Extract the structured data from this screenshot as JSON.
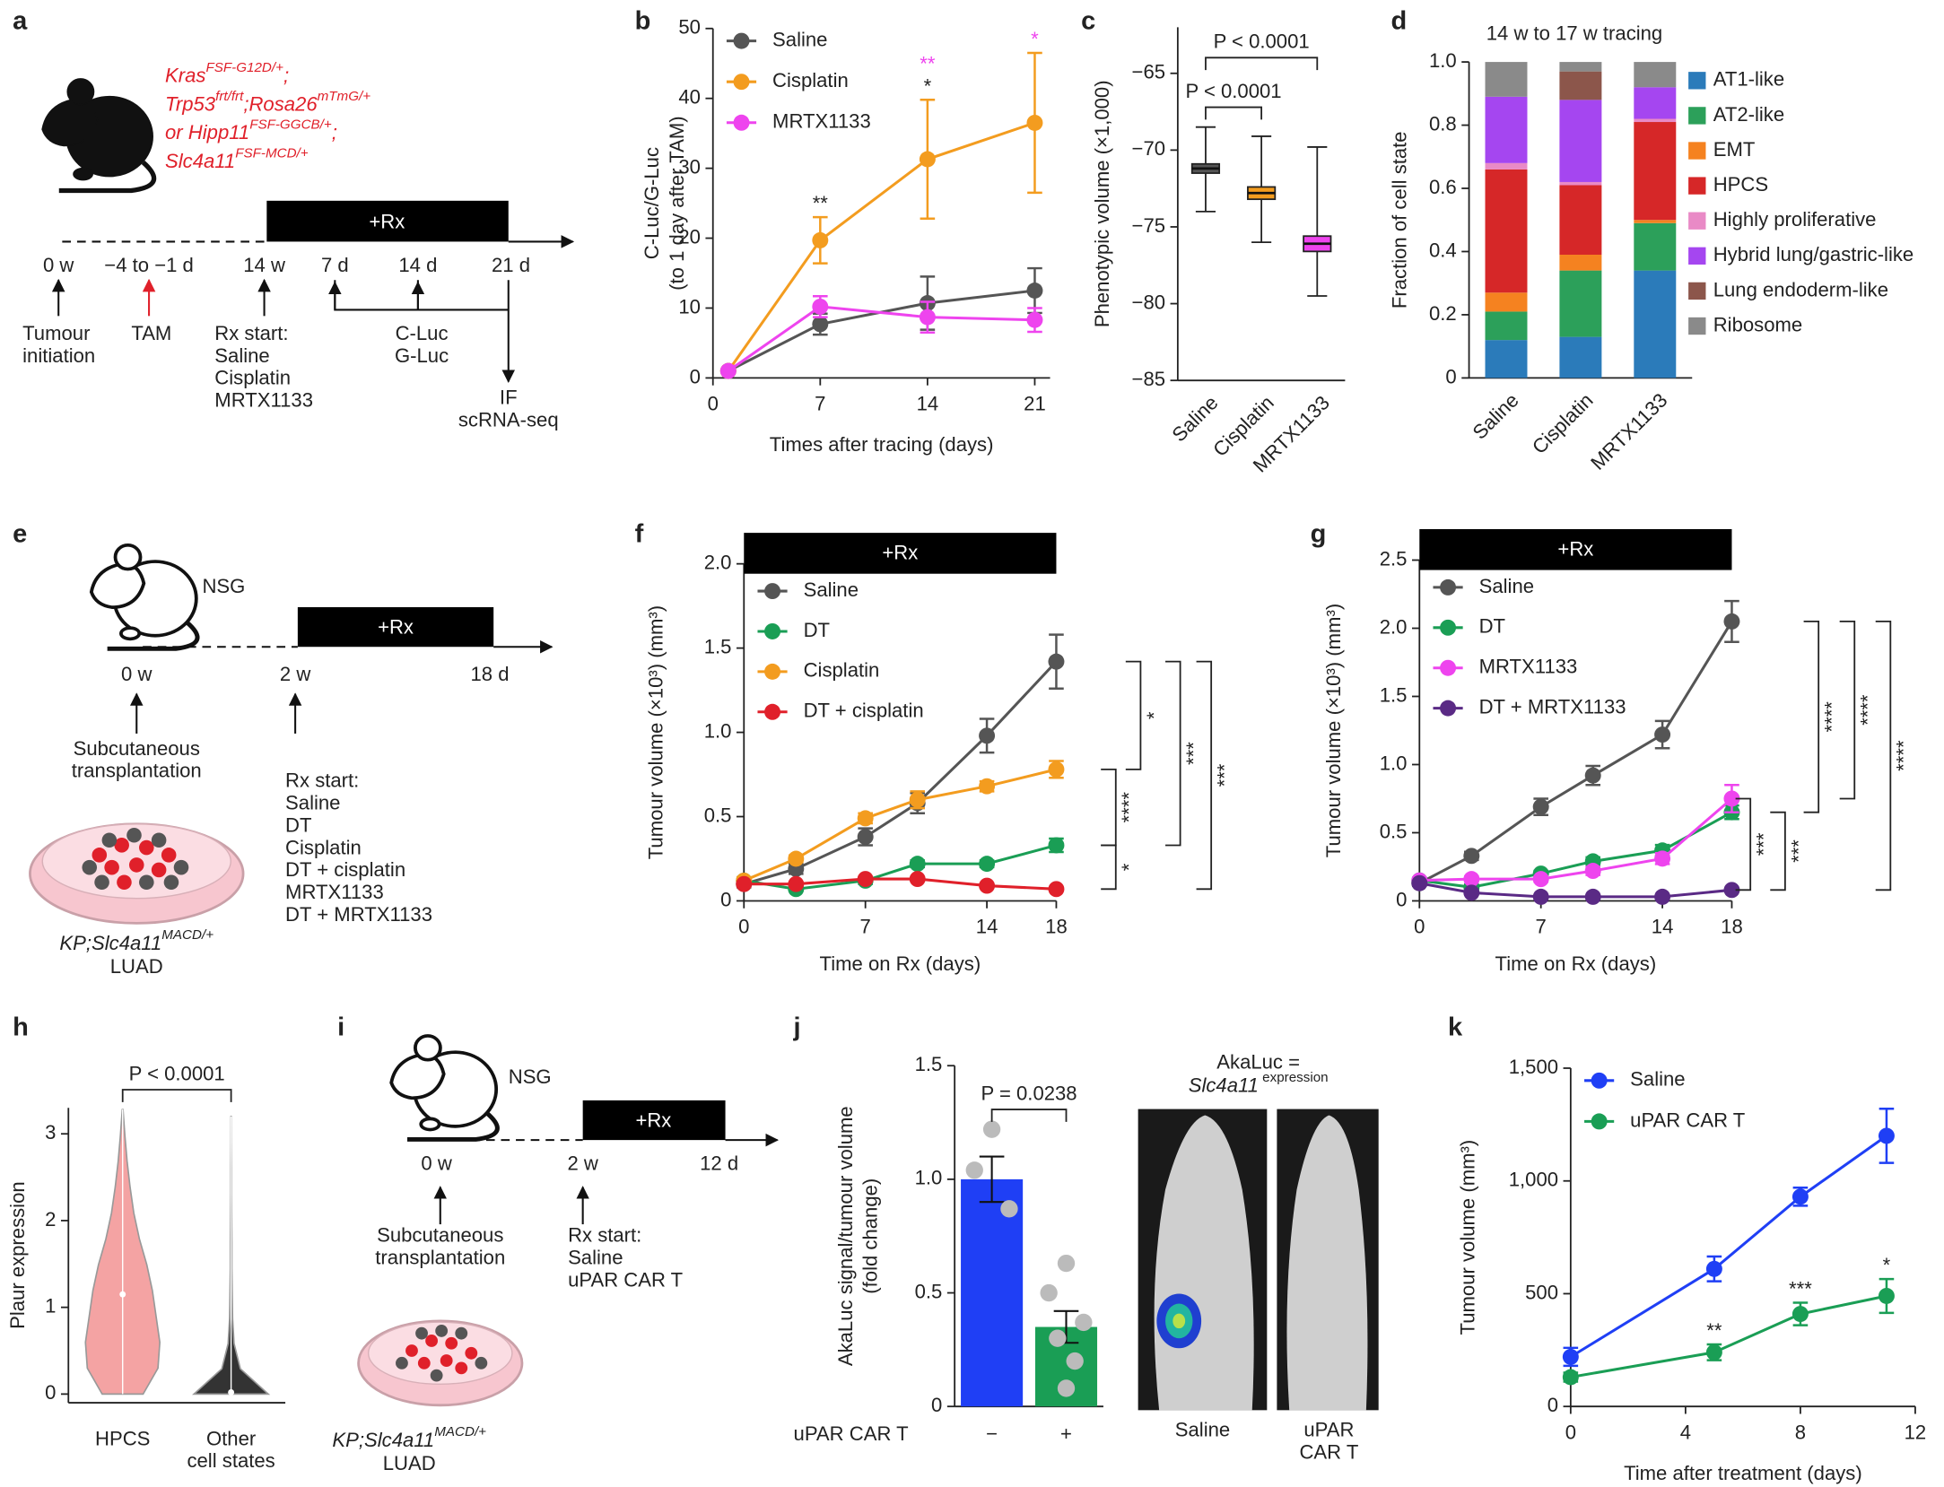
{
  "panel_labels": [
    "a",
    "b",
    "c",
    "d",
    "e",
    "f",
    "g",
    "h",
    "i",
    "j",
    "k"
  ],
  "diagram_a": {
    "genotype": [
      [
        "Kras",
        "FSF-G12D/+",
        ";"
      ],
      [
        "Trp53",
        "frt/frt",
        ";Rosa26",
        "mTmG/+"
      ],
      [
        "or Hipp11",
        "FSF-GGCB/+",
        ";"
      ],
      [
        "Slc4a11",
        "FSF-MCD/+"
      ]
    ],
    "rx_bar": "+Rx",
    "timepoints": [
      "0 w",
      "−4 to −1 d",
      "14 w",
      "7 d",
      "14 d",
      "21 d"
    ],
    "events": [
      [
        "Tumour",
        "initiation"
      ],
      [
        "TAM"
      ],
      [
        "Rx start:",
        "Saline",
        "Cisplatin",
        "MRTX1133"
      ],
      [
        "C-Luc",
        "G-Luc"
      ],
      [
        "IF",
        "scRNA-seq"
      ]
    ]
  },
  "diagram_e": {
    "label": "NSG",
    "rx_bar": "+Rx",
    "timepoints": [
      "0 w",
      "2 w",
      "18 d"
    ],
    "events": [
      [
        "Subcutaneous",
        "transplantation"
      ],
      [
        "Rx start:",
        "Saline",
        "DT",
        "Cisplatin",
        "DT + cisplatin",
        "MRTX1133",
        "DT + MRTX1133"
      ]
    ],
    "model": [
      [
        "KP;Slc4a11",
        "MACD/+"
      ],
      [
        "LUAD"
      ]
    ]
  },
  "diagram_i": {
    "label": "NSG",
    "rx_bar": "+Rx",
    "timepoints": [
      "0 w",
      "2 w",
      "12 d"
    ],
    "events": [
      [
        "Subcutaneous",
        "transplantation"
      ],
      [
        "Rx start:",
        "Saline",
        "uPAR CAR T"
      ]
    ],
    "model": [
      [
        "KP;Slc4a11",
        "MACD/+"
      ],
      [
        "LUAD"
      ]
    ]
  },
  "images_j": {
    "title": [
      [
        "AkaLuc ="
      ],
      [
        "Slc4a11",
        " expression"
      ]
    ],
    "labels": [
      [
        "Saline"
      ],
      [
        "uPAR",
        "CAR T"
      ]
    ]
  },
  "chart_data": [
    {
      "type": "line",
      "ylabel": [
        "C-Luc/G-Luc",
        "(to 1 day after TAM)"
      ],
      "xlabel": "Times after tracing (days)",
      "x": [
        1,
        7,
        14,
        21
      ],
      "xlim": [
        0,
        22
      ],
      "xticks": [
        0,
        7,
        14,
        21
      ],
      "ylim": [
        0,
        50
      ],
      "yticks": [
        0,
        10,
        20,
        30,
        40,
        50
      ],
      "legend": "upper left",
      "series": [
        {
          "name": "Saline",
          "color": "#555555",
          "values": [
            1,
            7.7,
            10.7,
            12.5
          ],
          "errors": [
            0.3,
            1.5,
            3.8,
            3.2
          ]
        },
        {
          "name": "Cisplatin",
          "color": "#f39c1f",
          "values": [
            1,
            19.7,
            31.3,
            36.5
          ],
          "errors": [
            0.3,
            3.3,
            8.5,
            10
          ]
        },
        {
          "name": "MRTX1133",
          "color": "#ee44ee",
          "values": [
            1,
            10.2,
            8.7,
            8.3
          ],
          "errors": [
            0.3,
            1.5,
            2.2,
            1.7
          ]
        }
      ],
      "annotations": [
        {
          "x": 7,
          "series": 1,
          "text": "**",
          "color": "#222222"
        },
        {
          "x": 14,
          "series": 1,
          "text": "*",
          "color": "#222222"
        },
        {
          "x": 14,
          "series": 1,
          "text": "**",
          "color": "#ee44ee"
        },
        {
          "x": 21,
          "series": 1,
          "text": "*",
          "color": "#ee44ee"
        }
      ]
    },
    {
      "type": "box",
      "ylabel": "Phenotypic volume (×1,000)",
      "categories": [
        "Saline",
        "Cisplatin",
        "MRTX1133"
      ],
      "colors": [
        "#555555",
        "#f39c1f",
        "#ee44ee"
      ],
      "stats": [
        {
          "min": -74,
          "q1": -71.5,
          "median": -71.2,
          "q3": -70.9,
          "max": -68.5
        },
        {
          "min": -76,
          "q1": -73.2,
          "median": -72.8,
          "q3": -72.4,
          "max": -69.1
        },
        {
          "min": -79.5,
          "q1": -76.6,
          "median": -76.1,
          "q3": -75.6,
          "max": -69.8
        }
      ],
      "ylim": [
        -85,
        -62
      ],
      "yticks": [
        {
          "value": -85,
          "label": "−85"
        },
        {
          "value": -80,
          "label": "−80"
        },
        {
          "value": -75,
          "label": "−75"
        },
        {
          "value": -70,
          "label": "−70"
        },
        {
          "value": -65,
          "label": "−65"
        }
      ],
      "comparisons": [
        {
          "categories": [
            0,
            1
          ],
          "label": "P < 0.0001"
        },
        {
          "categories": [
            0,
            2
          ],
          "label": "P < 0.0001"
        }
      ]
    },
    {
      "type": "stacked_bar",
      "title": "14 w to 17 w tracing",
      "ylabel": "Fraction of cell state",
      "categories": [
        "Saline",
        "Cisplatin",
        "MRTX1133"
      ],
      "ylim": [
        0,
        1
      ],
      "yticks": [
        0,
        0.2,
        0.4,
        0.6,
        0.8,
        {
          "value": 1,
          "label": "1.0"
        }
      ],
      "legend": "right",
      "series": [
        {
          "name": "AT1-like",
          "color": "#2b7bba",
          "values": [
            0.12,
            0.13,
            0.34
          ]
        },
        {
          "name": "AT2-like",
          "color": "#2ca05a",
          "values": [
            0.09,
            0.21,
            0.15
          ]
        },
        {
          "name": "EMT",
          "color": "#f58220",
          "values": [
            0.06,
            0.05,
            0.01
          ]
        },
        {
          "name": "HPCS",
          "color": "#d62728",
          "values": [
            0.39,
            0.22,
            0.31
          ]
        },
        {
          "name": "Highly proliferative",
          "color": "#e98ac6",
          "values": [
            0.02,
            0.01,
            0.01
          ]
        },
        {
          "name": "Hybrid lung/gastric-like",
          "color": "#a546f0",
          "values": [
            0.21,
            0.26,
            0.1
          ]
        },
        {
          "name": "Lung endoderm-like",
          "color": "#8c564b",
          "values": [
            0,
            0.09,
            0
          ]
        },
        {
          "name": "Ribosome",
          "color": "#8a8a8a",
          "values": [
            0.11,
            0.03,
            0.08
          ]
        }
      ]
    },
    {
      "type": "line",
      "rx_bar": "+Rx",
      "ylabel": "Tumour volume (×10³) (mm³)",
      "xlabel": "Time on Rx (days)",
      "x": [
        0,
        3,
        7,
        10,
        14,
        18
      ],
      "xlim": [
        0,
        18
      ],
      "xticks": [
        0,
        7,
        14,
        18
      ],
      "ylim": [
        0,
        2
      ],
      "yticks": [
        0,
        0.5,
        {
          "value": 1,
          "label": "1.0"
        },
        1.5,
        {
          "value": 2,
          "label": "2.0"
        }
      ],
      "legend": "upper left",
      "series": [
        {
          "name": "Saline",
          "color": "#555555",
          "values": [
            0.1,
            0.19,
            0.38,
            0.58,
            0.98,
            1.42
          ],
          "errors": [
            0.02,
            0.03,
            0.05,
            0.06,
            0.1,
            0.16
          ]
        },
        {
          "name": "DT",
          "color": "#1a9e55",
          "values": [
            0.12,
            0.07,
            0.12,
            0.22,
            0.22,
            0.33
          ],
          "errors": [
            0.02,
            0.01,
            0.02,
            0.02,
            0.02,
            0.04
          ]
        },
        {
          "name": "Cisplatin",
          "color": "#f39c1f",
          "values": [
            0.12,
            0.25,
            0.49,
            0.6,
            0.68,
            0.78
          ],
          "errors": [
            0.02,
            0.02,
            0.03,
            0.05,
            0.03,
            0.05
          ]
        },
        {
          "name": "DT + cisplatin",
          "color": "#e0202a",
          "values": [
            0.1,
            0.1,
            0.13,
            0.13,
            0.09,
            0.07
          ],
          "errors": [
            0.01,
            0.01,
            0.01,
            0.01,
            0.01,
            0.01
          ]
        }
      ],
      "comparisons": [
        {
          "series": [
            0,
            2
          ],
          "label": "*"
        },
        {
          "series": [
            2,
            1
          ],
          "label": "****"
        },
        {
          "series": [
            1,
            3
          ],
          "label": "*"
        },
        {
          "series": [
            0,
            1
          ],
          "label": "***"
        },
        {
          "series": [
            0,
            3
          ],
          "label": "***"
        }
      ]
    },
    {
      "type": "line",
      "rx_bar": "+Rx",
      "ylabel": "Tumour volume (×10³) (mm³)",
      "xlabel": "Time on Rx (days)",
      "x": [
        0,
        3,
        7,
        10,
        14,
        18
      ],
      "xlim": [
        0,
        18
      ],
      "xticks": [
        0,
        7,
        14,
        18
      ],
      "ylim": [
        0,
        2.5
      ],
      "yticks": [
        0,
        0.5,
        {
          "value": 1,
          "label": "1.0"
        },
        1.5,
        {
          "value": 2,
          "label": "2.0"
        },
        2.5
      ],
      "legend": "upper left",
      "series": [
        {
          "name": "Saline",
          "color": "#555555",
          "values": [
            0.13,
            0.33,
            0.69,
            0.92,
            1.22,
            2.05
          ],
          "errors": [
            0.02,
            0.03,
            0.06,
            0.07,
            0.1,
            0.15
          ]
        },
        {
          "name": "DT",
          "color": "#1a9e55",
          "values": [
            0.15,
            0.1,
            0.2,
            0.29,
            0.37,
            0.65
          ],
          "errors": [
            0.02,
            0.02,
            0.02,
            0.03,
            0.04,
            0.05
          ]
        },
        {
          "name": "MRTX1133",
          "color": "#ee44ee",
          "values": [
            0.15,
            0.16,
            0.16,
            0.22,
            0.31,
            0.75
          ],
          "errors": [
            0.02,
            0.02,
            0.02,
            0.03,
            0.04,
            0.1
          ]
        },
        {
          "name": "DT + MRTX1133",
          "color": "#5a2a85",
          "values": [
            0.13,
            0.06,
            0.03,
            0.03,
            0.03,
            0.08
          ],
          "errors": [
            0.01,
            0.01,
            0.01,
            0.01,
            0.01,
            0.01
          ]
        }
      ],
      "comparisons": [
        {
          "series": [
            0,
            1
          ],
          "label": "****"
        },
        {
          "series": [
            0,
            2
          ],
          "label": "****"
        },
        {
          "series": [
            0,
            3
          ],
          "label": "****"
        },
        {
          "series": [
            2,
            3
          ],
          "label": "***"
        },
        {
          "series": [
            1,
            3
          ],
          "label": "***"
        }
      ]
    },
    {
      "type": "violin",
      "ylabel": "Plaur expression",
      "categories": [
        [
          "HPCS"
        ],
        [
          "Other",
          "cell states"
        ]
      ],
      "colors": [
        "#f4a3a3",
        "#333333"
      ],
      "ylim": [
        -0.1,
        3.3
      ],
      "yticks": [
        0,
        1,
        2,
        3
      ],
      "violins": [
        {
          "min": 0,
          "max": 3.28,
          "median": 1.15,
          "density": [
            0.55,
            0.95,
            1.0,
            0.9,
            0.8,
            0.65,
            0.45,
            0.3,
            0.2,
            0.12,
            0.06,
            0.01
          ]
        },
        {
          "min": 0,
          "max": 3.2,
          "median": 0.02,
          "density": [
            1.0,
            0.25,
            0.08,
            0.04,
            0.03,
            0.02,
            0.02,
            0.015,
            0.01,
            0.01,
            0.005,
            0.003
          ]
        }
      ],
      "comparisons": [
        {
          "categories": [
            0,
            1
          ],
          "label": "P < 0.0001"
        }
      ]
    },
    {
      "type": "bar",
      "ylabel": [
        "AkaLuc signal/tumour volume",
        "(fold change)"
      ],
      "xlabel": "uPAR CAR T",
      "categories": [
        "−",
        "+"
      ],
      "values": [
        1.0,
        0.35
      ],
      "errors": [
        0.1,
        0.07
      ],
      "colors": [
        "#1f3ff5",
        "#1a9e55"
      ],
      "point_color": "#bbbbbb",
      "points": [
        [
          1.22,
          1.04,
          0.87
        ],
        [
          0.63,
          0.5,
          0.37,
          0.3,
          0.2,
          0.08
        ]
      ],
      "ylim": [
        0,
        1.5
      ],
      "yticks": [
        0,
        0.5,
        {
          "value": 1,
          "label": "1.0"
        },
        1.5
      ],
      "comparisons": [
        {
          "categories": [
            0,
            1
          ],
          "label": "P = 0.0238"
        }
      ]
    },
    {
      "type": "line",
      "ylabel": "Tumour volume (mm³)",
      "xlabel": "Time after treatment (days)",
      "x": [
        0,
        5,
        8,
        11
      ],
      "xlim": [
        0,
        12
      ],
      "xticks": [
        0,
        4,
        8,
        12
      ],
      "ylim": [
        0,
        1500
      ],
      "yticks": [
        0,
        500,
        {
          "value": 1000,
          "label": "1,000"
        },
        {
          "value": 1500,
          "label": "1,500"
        }
      ],
      "legend": "upper left",
      "series": [
        {
          "name": "Saline",
          "color": "#1f3ff5",
          "values": [
            220,
            610,
            930,
            1200
          ],
          "errors": [
            40,
            55,
            40,
            120
          ]
        },
        {
          "name": "uPAR CAR T",
          "color": "#1a9e55",
          "values": [
            130,
            240,
            410,
            490
          ],
          "errors": [
            20,
            35,
            50,
            75
          ]
        }
      ],
      "annotations": [
        {
          "x": 5,
          "series": 1,
          "text": "**",
          "color": "#222222"
        },
        {
          "x": 8,
          "series": 1,
          "text": "***",
          "color": "#222222"
        },
        {
          "x": 11,
          "series": 1,
          "text": "*",
          "color": "#222222"
        }
      ]
    }
  ]
}
